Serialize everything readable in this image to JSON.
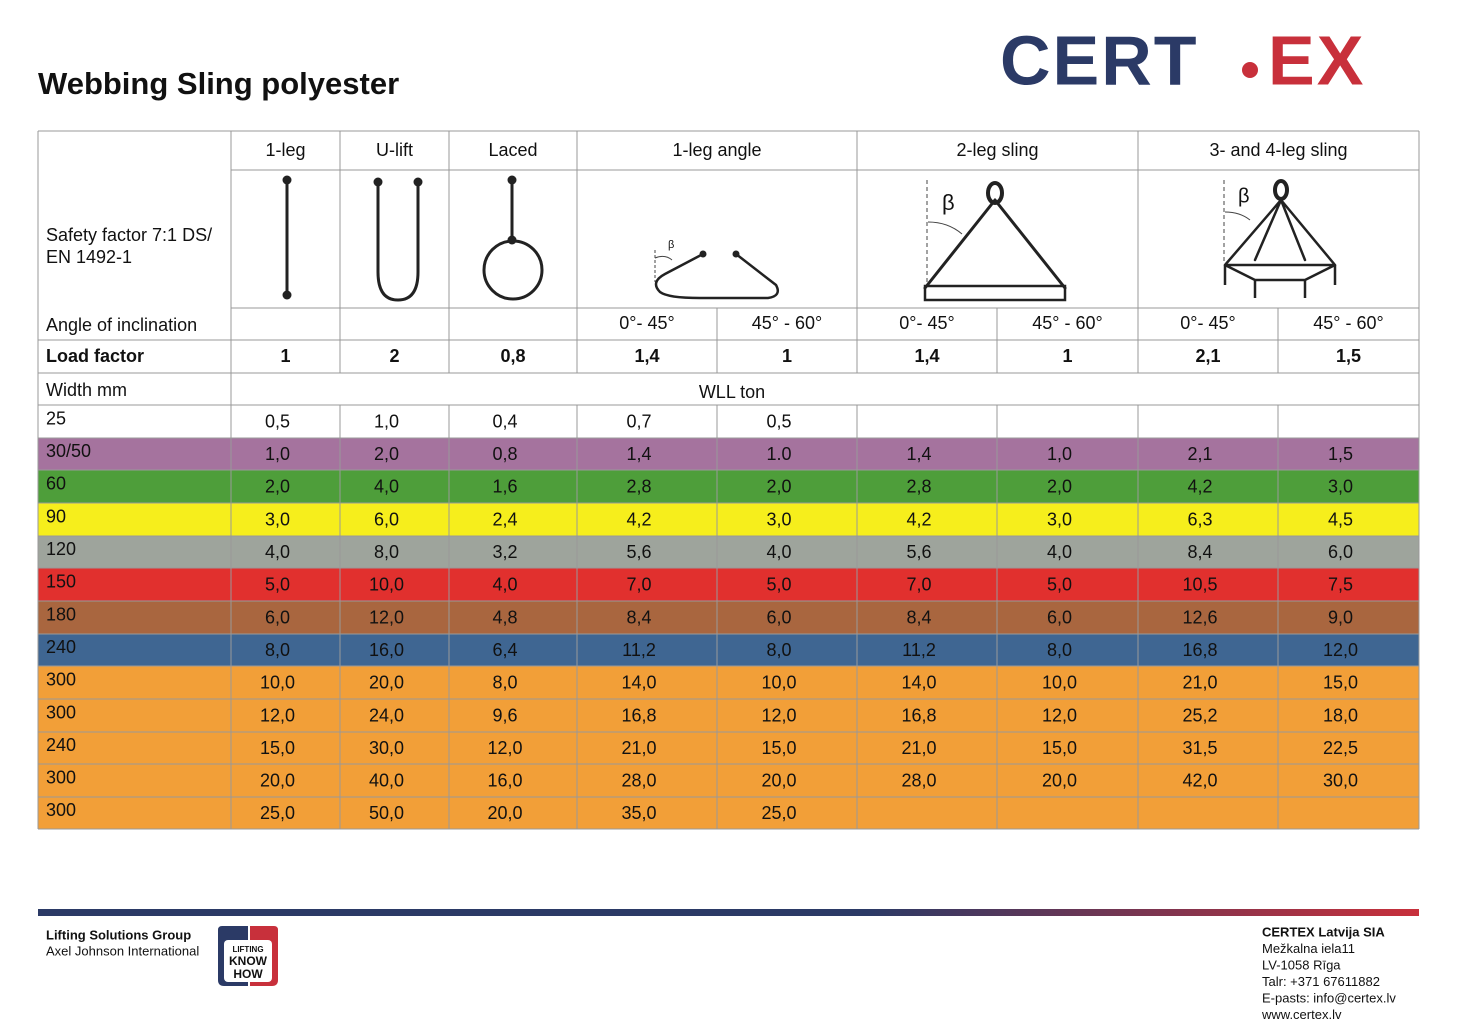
{
  "header": {
    "title": "Webbing Sling polyester",
    "logo": {
      "left": "CERT",
      "right": "EX"
    }
  },
  "table": {
    "safety_factor": [
      "Safety factor 7:1 DS/",
      "EN 1492-1"
    ],
    "angle_label": "Angle of inclination",
    "columns": [
      "1-leg",
      "U-lift",
      "Laced",
      "1-leg angle",
      "2-leg sling",
      "3- and 4-leg sling"
    ],
    "beta": "β",
    "angles": [
      "0°- 45°",
      "45° - 60°",
      "0°- 45°",
      "45° - 60°",
      "0°- 45°",
      "45° - 60°"
    ],
    "load_factor_label": "Load factor",
    "load_factors": [
      "1",
      "2",
      "0,8",
      "1,4",
      "1",
      "1,4",
      "1",
      "2,1",
      "1,5"
    ],
    "width_label": "Width mm",
    "wll_label": "WLL ton",
    "rows": [
      {
        "width": "25",
        "values": [
          "0,5",
          "1,0",
          "0,4",
          "0,7",
          "0,5"
        ]
      },
      {
        "width": "30/50",
        "color": "#a5739e",
        "values": [
          "1,0",
          "2,0",
          "0,8",
          "1,4",
          "1.0",
          "1,4",
          "1,0",
          "2,1",
          "1,5"
        ]
      },
      {
        "width": "60",
        "color": "#4e9e3a",
        "values": [
          "2,0",
          "4,0",
          "1,6",
          "2,8",
          "2,0",
          "2,8",
          "2,0",
          "4,2",
          "3,0"
        ]
      },
      {
        "width": "90",
        "color": "#f6ee1c",
        "values": [
          "3,0",
          "6,0",
          "2,4",
          "4,2",
          "3,0",
          "4,2",
          "3,0",
          "6,3",
          "4,5"
        ]
      },
      {
        "width": "120",
        "color": "#9ea49c",
        "values": [
          "4,0",
          "8,0",
          "3,2",
          "5,6",
          "4,0",
          "5,6",
          "4,0",
          "8,4",
          "6,0"
        ]
      },
      {
        "width": "150",
        "color": "#e1302e",
        "values": [
          "5,0",
          "10,0",
          "4,0",
          "7,0",
          "5,0",
          "7,0",
          "5,0",
          "10,5",
          "7,5"
        ]
      },
      {
        "width": "180",
        "color": "#a9663f",
        "values": [
          "6,0",
          "12,0",
          "4,8",
          "8,4",
          "6,0",
          "8,4",
          "6,0",
          "12,6",
          "9,0"
        ]
      },
      {
        "width": "240",
        "color": "#3f6692",
        "values": [
          "8,0",
          "16,0",
          "6,4",
          "11,2",
          "8,0",
          "11,2",
          "8,0",
          "16,8",
          "12,0"
        ]
      },
      {
        "width": "300",
        "color": "#f29f38",
        "values": [
          "10,0",
          "20,0",
          "8,0",
          "14,0",
          "10,0",
          "14,0",
          "10,0",
          "21,0",
          "15,0"
        ]
      },
      {
        "width": "300",
        "color": "#f29f38",
        "values": [
          "12,0",
          "24,0",
          "9,6",
          "16,8",
          "12,0",
          "16,8",
          "12,0",
          "25,2",
          "18,0"
        ]
      },
      {
        "width": "240",
        "color": "#f29f38",
        "values": [
          "15,0",
          "30,0",
          "12,0",
          "21,0",
          "15,0",
          "21,0",
          "15,0",
          "31,5",
          "22,5"
        ]
      },
      {
        "width": "300",
        "color": "#f29f38",
        "values": [
          "20,0",
          "40,0",
          "16,0",
          "28,0",
          "20,0",
          "28,0",
          "20,0",
          "42,0",
          "30,0"
        ]
      },
      {
        "width": "300",
        "color": "#f29f38",
        "values": [
          "25,0",
          "50,0",
          "20,0",
          "35,0",
          "25,0"
        ]
      }
    ]
  },
  "footer": {
    "group": "Lifting Solutions Group",
    "parent": "Axel Johnson International",
    "badge": [
      "LIFTING",
      "KNOW",
      "HOW"
    ],
    "address": [
      "CERTEX Latvija SIA",
      "Mežkalna iela11",
      " LV-1058 Rīga",
      "Talr: +371 67611882",
      "E-pasts: info@certex.lv",
      "www.certex.lv"
    ]
  }
}
